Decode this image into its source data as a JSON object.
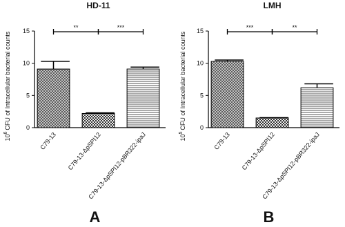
{
  "chart_data": [
    {
      "type": "bar",
      "title": "HD-11",
      "panel_label": "A",
      "y_label": {
        "base": "10",
        "exponent": "6",
        "text": "CFU of Intracellular bacterial counts"
      },
      "categories": [
        "C79-13",
        "C79-13-ΔpSPI12",
        "C79-13-ΔpSPI12-pBR322-ipaJ"
      ],
      "values": [
        9.1,
        2.2,
        9.1
      ],
      "errors": [
        1.2,
        0.1,
        0.3
      ],
      "patterns": [
        "crosshatch",
        "checker",
        "hlines"
      ],
      "ylim": [
        0,
        15
      ],
      "yticks": [
        0,
        5,
        10,
        15
      ],
      "comparisons": [
        {
          "label": "**",
          "between": [
            "C79-13",
            "C79-13-ΔpSPI12"
          ]
        },
        {
          "label": "***",
          "between": [
            "C79-13-ΔpSPI12",
            "C79-13-ΔpSPI12-pBR322-ipaJ"
          ]
        }
      ]
    },
    {
      "type": "bar",
      "title": "LMH",
      "panel_label": "B",
      "y_label": {
        "base": "10",
        "exponent": "5",
        "text": "CFU of Intracellular bacterial counts"
      },
      "categories": [
        "C79-13",
        "C79-13-ΔpSPI12",
        "C79-13-ΔpSPI12-pBR322-ipaJ"
      ],
      "values": [
        10.3,
        1.5,
        6.2
      ],
      "errors": [
        0.2,
        0.05,
        0.6
      ],
      "patterns": [
        "crosshatch",
        "checker",
        "hlines"
      ],
      "ylim": [
        0,
        15
      ],
      "yticks": [
        0,
        5,
        10,
        15
      ],
      "comparisons": [
        {
          "label": "***",
          "between": [
            "C79-13",
            "C79-13-ΔpSPI12"
          ]
        },
        {
          "label": "**",
          "between": [
            "C79-13-ΔpSPI12",
            "C79-13-ΔpSPI12-pBR322-ipaJ"
          ]
        }
      ]
    }
  ]
}
